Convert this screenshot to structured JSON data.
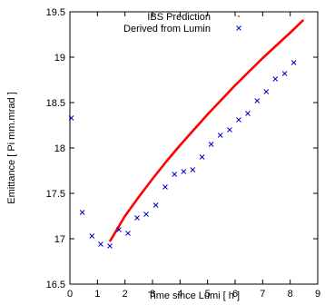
{
  "chart_data": {
    "type": "scatter",
    "xlabel": "Time since Lumi [ h ]",
    "ylabel": "Emittance [ Pi mm.mrad ]",
    "xlim": [
      0,
      9
    ],
    "ylim": [
      16.5,
      19.5
    ],
    "xticks": [
      "0",
      "1",
      "2",
      "3",
      "4",
      "5",
      "6",
      "7",
      "8",
      "9"
    ],
    "yticks": [
      "16.5",
      "17",
      "17.5",
      "18",
      "18.5",
      "19",
      "19.5"
    ],
    "legend_position": "top-right",
    "grid": false,
    "series": [
      {
        "name": "IBS Prediction",
        "kind": "line",
        "color": "#ff0000",
        "x": [
          1.45,
          2.0,
          2.5,
          3.0,
          3.5,
          4.0,
          4.5,
          5.0,
          5.5,
          6.0,
          6.5,
          7.0,
          7.5,
          8.0,
          8.48
        ],
        "y": [
          16.97,
          17.25,
          17.46,
          17.66,
          17.85,
          18.03,
          18.2,
          18.37,
          18.53,
          18.69,
          18.84,
          18.99,
          19.13,
          19.27,
          19.41
        ]
      },
      {
        "name": "Derived from Lumin",
        "kind": "points",
        "marker": "x",
        "color": "#0000cc",
        "x": [
          0.05,
          0.45,
          0.8,
          1.12,
          1.45,
          1.78,
          2.11,
          2.44,
          2.77,
          3.12,
          3.46,
          3.8,
          4.13,
          4.46,
          4.8,
          5.13,
          5.46,
          5.8,
          6.13,
          6.46,
          6.8,
          7.13,
          7.46,
          7.8,
          8.13
        ],
        "y": [
          18.33,
          17.29,
          17.03,
          16.94,
          16.92,
          17.1,
          17.06,
          17.23,
          17.27,
          17.37,
          17.57,
          17.71,
          17.74,
          17.76,
          17.9,
          18.04,
          18.14,
          18.2,
          18.31,
          18.38,
          18.52,
          18.62,
          18.76,
          18.82,
          18.94
        ]
      }
    ]
  }
}
